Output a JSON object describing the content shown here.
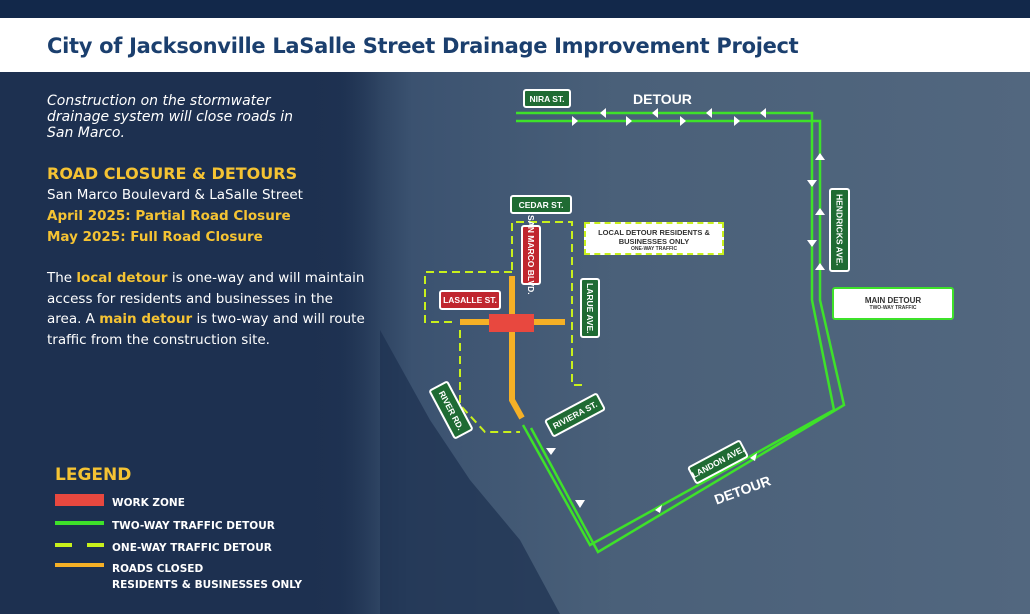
{
  "header": {
    "title": "City of Jacksonville LaSalle Street Drainage Improvement Project"
  },
  "intro": "Construction on the stormwater drainage system will close roads in San Marco.",
  "closure": {
    "heading": "ROAD CLOSURE & DETOURS",
    "location": "San Marco Boulevard & LaSalle Street",
    "april": "April 2025: Partial Road Closure",
    "may": "May 2025: Full Road Closure"
  },
  "description": {
    "p1": "The ",
    "local": "local detour",
    "p2": " is one-way and will maintain access for residents and businesses in the area. A ",
    "main": "main detour",
    "p3": " is two-way and will route traffic from the construction site."
  },
  "legend": {
    "title": "LEGEND",
    "items": [
      {
        "label": "WORK ZONE",
        "color": "#e8483f"
      },
      {
        "label": "TWO-WAY TRAFFIC DETOUR",
        "color": "#3ee12a"
      },
      {
        "label": "ONE-WAY TRAFFIC DETOUR",
        "color": "#c8f01c"
      },
      {
        "label": "ROADS CLOSED",
        "label2": "RESIDENTS & BUSINESSES ONLY",
        "color": "#f5b026"
      }
    ]
  },
  "map": {
    "streets": {
      "nira": "NIRA ST.",
      "cedar": "CEDAR ST.",
      "san_marco": "SAN MARCO BLVD.",
      "lasalle": "LASALLE ST.",
      "larue": "LARUE AVE.",
      "river": "RIVER RD.",
      "riviera": "RIVIERA ST.",
      "hendricks": "HENDRICKS AVE.",
      "landon": "LANDON AVE."
    },
    "detour_labels": [
      "DETOUR",
      "DETOUR"
    ],
    "local_box": {
      "title": "LOCAL DETOUR RESIDENTS & BUSINESSES ONLY",
      "sub": "ONE-WAY TRAFFIC"
    },
    "main_box": {
      "title": "MAIN DETOUR",
      "sub": "TWO-WAY TRAFFIC"
    }
  }
}
